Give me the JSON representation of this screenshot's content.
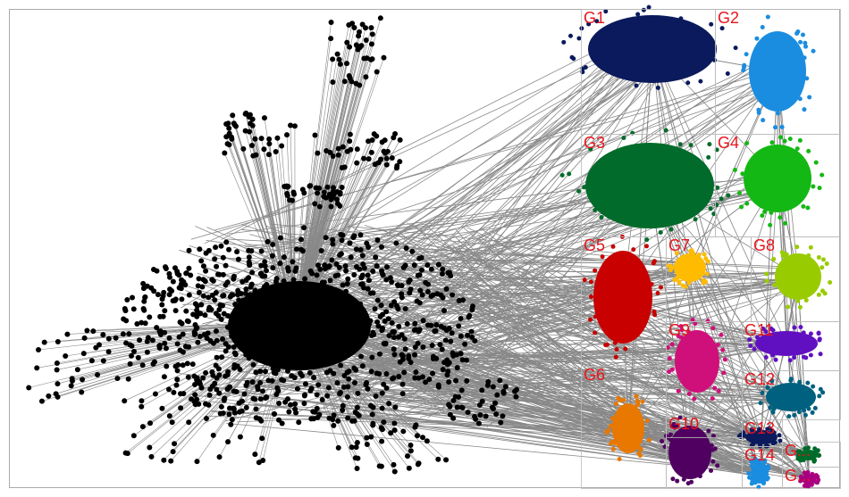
{
  "groups": [
    {
      "label": "G1"
    },
    {
      "label": "G2"
    },
    {
      "label": "G3"
    },
    {
      "label": "G4"
    },
    {
      "label": "G5"
    },
    {
      "label": "G7"
    },
    {
      "label": "G8"
    },
    {
      "label": "G9"
    },
    {
      "label": "G11"
    },
    {
      "label": "G6"
    },
    {
      "label": "G12"
    },
    {
      "label": "G10"
    },
    {
      "label": "G13"
    },
    {
      "label": "G14"
    },
    {
      "label": "G..."
    },
    {
      "label": "G..."
    }
  ]
}
